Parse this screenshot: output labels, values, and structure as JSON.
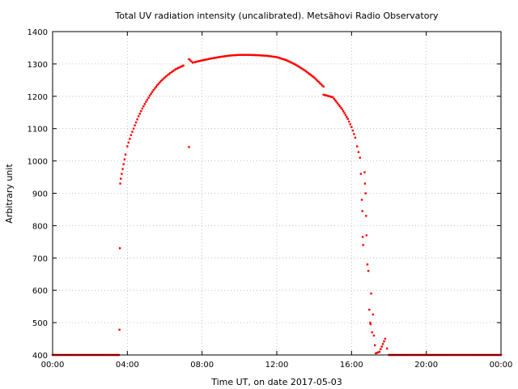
{
  "chart_data": {
    "type": "scatter",
    "title": "Total UV radiation intensity (uncalibrated). Metsähovi Radio Observatory",
    "xlabel": "Time UT, on date 2017-05-03",
    "ylabel": "Arbitrary unit",
    "xlim": [
      "00:00",
      "24:00"
    ],
    "ylim": [
      400,
      1400
    ],
    "x_ticks": [
      "00:00",
      "04:00",
      "08:00",
      "12:00",
      "16:00",
      "20:00",
      "00:00"
    ],
    "y_ticks": [
      "400",
      "500",
      "600",
      "700",
      "800",
      "900",
      "1000",
      "1100",
      "1200",
      "1300",
      "1400"
    ],
    "grid": true,
    "marker_color": "#ff0000",
    "series": [
      {
        "x_unit": "hours UT",
        "points": [
          [
            0.0,
            400
          ],
          [
            3.55,
            400
          ],
          [
            3.58,
            478
          ],
          [
            3.6,
            730
          ],
          [
            3.62,
            930
          ],
          [
            3.65,
            945
          ],
          [
            3.7,
            960
          ],
          [
            3.75,
            975
          ],
          [
            3.8,
            990
          ],
          [
            3.85,
            1005
          ],
          [
            3.9,
            1020
          ],
          [
            4.0,
            1045
          ],
          [
            4.2,
            1080
          ],
          [
            4.4,
            1110
          ],
          [
            4.6,
            1138
          ],
          [
            4.8,
            1162
          ],
          [
            5.0,
            1183
          ],
          [
            5.2,
            1202
          ],
          [
            5.4,
            1219
          ],
          [
            5.6,
            1234
          ],
          [
            5.8,
            1247
          ],
          [
            6.0,
            1258
          ],
          [
            6.3,
            1272
          ],
          [
            6.6,
            1284
          ],
          [
            7.0,
            1295
          ],
          [
            7.3,
            1043
          ],
          [
            7.3,
            1315
          ],
          [
            7.5,
            1304
          ],
          [
            8.0,
            1311
          ],
          [
            8.5,
            1317
          ],
          [
            9.0,
            1322
          ],
          [
            9.5,
            1326
          ],
          [
            10.0,
            1328
          ],
          [
            10.5,
            1328
          ],
          [
            11.0,
            1327
          ],
          [
            11.5,
            1325
          ],
          [
            12.0,
            1321
          ],
          [
            12.5,
            1312
          ],
          [
            13.0,
            1298
          ],
          [
            13.5,
            1280
          ],
          [
            14.0,
            1258
          ],
          [
            14.5,
            1230
          ],
          [
            14.5,
            1205
          ],
          [
            15.0,
            1197
          ],
          [
            15.5,
            1160
          ],
          [
            15.8,
            1130
          ],
          [
            16.0,
            1105
          ],
          [
            16.2,
            1072
          ],
          [
            16.3,
            1045
          ],
          [
            16.45,
            1010
          ],
          [
            16.5,
            960
          ],
          [
            16.55,
            880
          ],
          [
            16.58,
            845
          ],
          [
            16.6,
            765
          ],
          [
            16.62,
            740
          ],
          [
            16.7,
            965
          ],
          [
            16.72,
            930
          ],
          [
            16.75,
            900
          ],
          [
            16.78,
            830
          ],
          [
            16.8,
            770
          ],
          [
            16.85,
            680
          ],
          [
            16.9,
            660
          ],
          [
            16.95,
            540
          ],
          [
            17.0,
            500
          ],
          [
            17.02,
            495
          ],
          [
            17.05,
            590
          ],
          [
            17.1,
            470
          ],
          [
            17.15,
            525
          ],
          [
            17.2,
            460
          ],
          [
            17.25,
            430
          ],
          [
            17.3,
            405
          ],
          [
            17.5,
            410
          ],
          [
            17.8,
            450
          ],
          [
            17.9,
            420
          ],
          [
            18.0,
            400
          ],
          [
            20.0,
            400
          ],
          [
            24.0,
            400
          ]
        ]
      }
    ]
  }
}
